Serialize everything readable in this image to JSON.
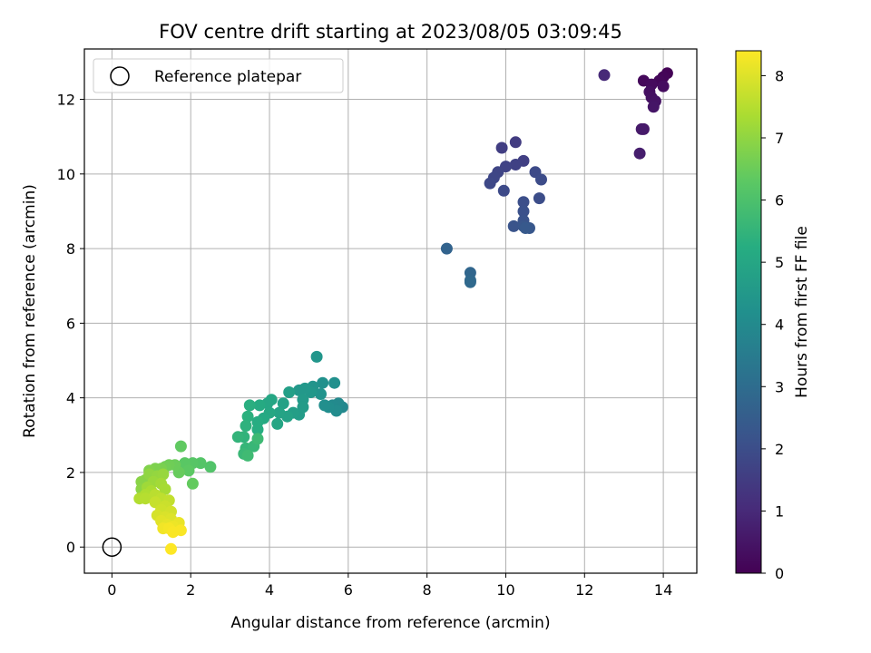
{
  "chart_data": {
    "type": "scatter",
    "title": "FOV centre drift starting at 2023/08/05 03:09:45",
    "xlabel": "Angular distance from reference (arcmin)",
    "ylabel": "Rotation from reference (arcmin)",
    "xlim": [
      -0.7,
      14.85
    ],
    "ylim": [
      -0.7,
      13.35
    ],
    "xticks": [
      0,
      2,
      4,
      6,
      8,
      10,
      12,
      14
    ],
    "yticks": [
      0,
      2,
      4,
      6,
      8,
      10,
      12
    ],
    "grid": true,
    "legend": {
      "placement": "top-left",
      "entries": [
        "Reference platepar"
      ]
    },
    "reference_point": {
      "x": 0,
      "y": 0,
      "label": "Reference platepar"
    },
    "colorbar": {
      "label": "Hours from first FF file",
      "min": 0,
      "max": 8.4,
      "ticks": [
        0,
        1,
        2,
        3,
        4,
        5,
        6,
        7,
        8
      ],
      "colormap": "viridis"
    },
    "points": [
      [
        14.1,
        12.7,
        0.05
      ],
      [
        14.0,
        12.6,
        0.1
      ],
      [
        13.9,
        12.5,
        0.15
      ],
      [
        13.5,
        12.5,
        0.2
      ],
      [
        13.7,
        12.4,
        0.25
      ],
      [
        14.0,
        12.35,
        0.3
      ],
      [
        13.65,
        12.2,
        0.35
      ],
      [
        13.7,
        12.05,
        0.4
      ],
      [
        13.8,
        11.95,
        0.45
      ],
      [
        13.75,
        11.8,
        0.5
      ],
      [
        13.5,
        11.2,
        0.55
      ],
      [
        13.45,
        11.2,
        0.6
      ],
      [
        13.4,
        10.55,
        0.7
      ],
      [
        12.5,
        12.65,
        1.0
      ],
      [
        10.25,
        10.85,
        1.5
      ],
      [
        9.9,
        10.7,
        1.55
      ],
      [
        10.45,
        10.35,
        1.6
      ],
      [
        10.25,
        10.25,
        1.65
      ],
      [
        10.0,
        10.2,
        1.7
      ],
      [
        9.8,
        10.05,
        1.75
      ],
      [
        9.7,
        9.9,
        1.8
      ],
      [
        9.6,
        9.75,
        1.85
      ],
      [
        9.95,
        9.55,
        1.9
      ],
      [
        10.75,
        10.05,
        1.9
      ],
      [
        10.9,
        9.85,
        1.95
      ],
      [
        10.85,
        9.35,
        2.0
      ],
      [
        10.45,
        9.25,
        2.05
      ],
      [
        10.45,
        9.0,
        2.1
      ],
      [
        10.45,
        8.75,
        2.15
      ],
      [
        10.2,
        8.6,
        2.2
      ],
      [
        10.45,
        8.6,
        2.25
      ],
      [
        10.6,
        8.55,
        2.3
      ],
      [
        10.5,
        8.55,
        2.35
      ],
      [
        8.5,
        8.0,
        2.7
      ],
      [
        9.1,
        7.35,
        2.8
      ],
      [
        9.1,
        7.15,
        2.85
      ],
      [
        9.1,
        7.1,
        2.9
      ],
      [
        5.85,
        3.75,
        3.9
      ],
      [
        5.75,
        3.85,
        3.95
      ],
      [
        5.6,
        3.8,
        4.0
      ],
      [
        5.7,
        3.65,
        4.05
      ],
      [
        5.5,
        3.75,
        4.1
      ],
      [
        5.4,
        3.8,
        4.15
      ],
      [
        5.65,
        4.4,
        4.2
      ],
      [
        5.35,
        4.4,
        4.25
      ],
      [
        5.3,
        4.1,
        4.3
      ],
      [
        5.1,
        4.3,
        4.35
      ],
      [
        5.2,
        5.1,
        4.4
      ],
      [
        5.05,
        4.15,
        4.45
      ],
      [
        4.9,
        4.25,
        4.5
      ],
      [
        4.75,
        4.2,
        4.5
      ],
      [
        4.85,
        3.95,
        4.55
      ],
      [
        4.85,
        3.75,
        4.6
      ],
      [
        4.75,
        3.55,
        4.65
      ],
      [
        4.6,
        3.6,
        4.7
      ],
      [
        4.5,
        4.15,
        4.75
      ],
      [
        4.35,
        3.85,
        4.8
      ],
      [
        4.45,
        3.5,
        4.85
      ],
      [
        4.25,
        3.6,
        4.9
      ],
      [
        4.2,
        3.3,
        4.95
      ],
      [
        4.05,
        3.95,
        5.0
      ],
      [
        3.95,
        3.85,
        5.0
      ],
      [
        4.0,
        3.6,
        5.05
      ],
      [
        3.85,
        3.45,
        5.1
      ],
      [
        3.75,
        3.8,
        5.15
      ],
      [
        3.7,
        3.35,
        5.2
      ],
      [
        3.7,
        3.15,
        5.25
      ],
      [
        3.5,
        3.8,
        5.3
      ],
      [
        3.45,
        3.5,
        5.35
      ],
      [
        3.4,
        3.25,
        5.4
      ],
      [
        3.35,
        2.95,
        5.45
      ],
      [
        3.2,
        2.95,
        5.5
      ],
      [
        3.4,
        2.65,
        5.55
      ],
      [
        3.6,
        2.7,
        5.6
      ],
      [
        3.35,
        2.5,
        5.65
      ],
      [
        3.7,
        2.9,
        5.7
      ],
      [
        3.45,
        2.45,
        5.75
      ],
      [
        2.5,
        2.15,
        6.1
      ],
      [
        2.25,
        2.25,
        6.15
      ],
      [
        2.05,
        2.25,
        6.2
      ],
      [
        1.85,
        2.25,
        6.25
      ],
      [
        1.95,
        2.05,
        6.3
      ],
      [
        1.75,
        2.7,
        6.35
      ],
      [
        2.05,
        1.7,
        6.4
      ],
      [
        1.7,
        2.0,
        6.45
      ],
      [
        1.6,
        2.2,
        6.5
      ],
      [
        1.45,
        2.2,
        6.55
      ],
      [
        1.35,
        2.15,
        6.6
      ],
      [
        1.25,
        2.1,
        6.7
      ],
      [
        1.1,
        2.1,
        6.75
      ],
      [
        0.95,
        2.05,
        6.8
      ],
      [
        0.85,
        1.8,
        6.85
      ],
      [
        0.75,
        1.75,
        6.9
      ],
      [
        0.75,
        1.55,
        6.95
      ],
      [
        0.95,
        1.95,
        7.0
      ],
      [
        1.15,
        1.9,
        7.05
      ],
      [
        1.3,
        1.95,
        7.1
      ],
      [
        1.05,
        1.75,
        7.15
      ],
      [
        0.9,
        1.6,
        7.2
      ],
      [
        1.25,
        1.7,
        7.25
      ],
      [
        1.35,
        1.55,
        7.3
      ],
      [
        1.0,
        1.5,
        7.35
      ],
      [
        0.85,
        1.4,
        7.4
      ],
      [
        0.7,
        1.3,
        7.45
      ],
      [
        0.85,
        1.3,
        7.5
      ],
      [
        1.1,
        1.4,
        7.55
      ],
      [
        1.25,
        1.3,
        7.6
      ],
      [
        1.45,
        1.25,
        7.65
      ],
      [
        1.1,
        1.2,
        7.7
      ],
      [
        1.35,
        1.1,
        7.75
      ],
      [
        1.25,
        1.0,
        7.8
      ],
      [
        1.5,
        0.95,
        7.85
      ],
      [
        1.15,
        0.85,
        7.9
      ],
      [
        1.35,
        0.8,
        7.95
      ],
      [
        1.5,
        0.75,
        8.0
      ],
      [
        1.25,
        0.7,
        8.05
      ],
      [
        1.4,
        0.6,
        8.1
      ],
      [
        1.7,
        0.65,
        8.15
      ],
      [
        1.55,
        0.55,
        8.2
      ],
      [
        1.3,
        0.5,
        8.25
      ],
      [
        1.45,
        0.5,
        8.3
      ],
      [
        1.75,
        0.45,
        8.35
      ],
      [
        1.55,
        0.4,
        8.35
      ],
      [
        1.5,
        -0.05,
        8.4
      ]
    ]
  }
}
